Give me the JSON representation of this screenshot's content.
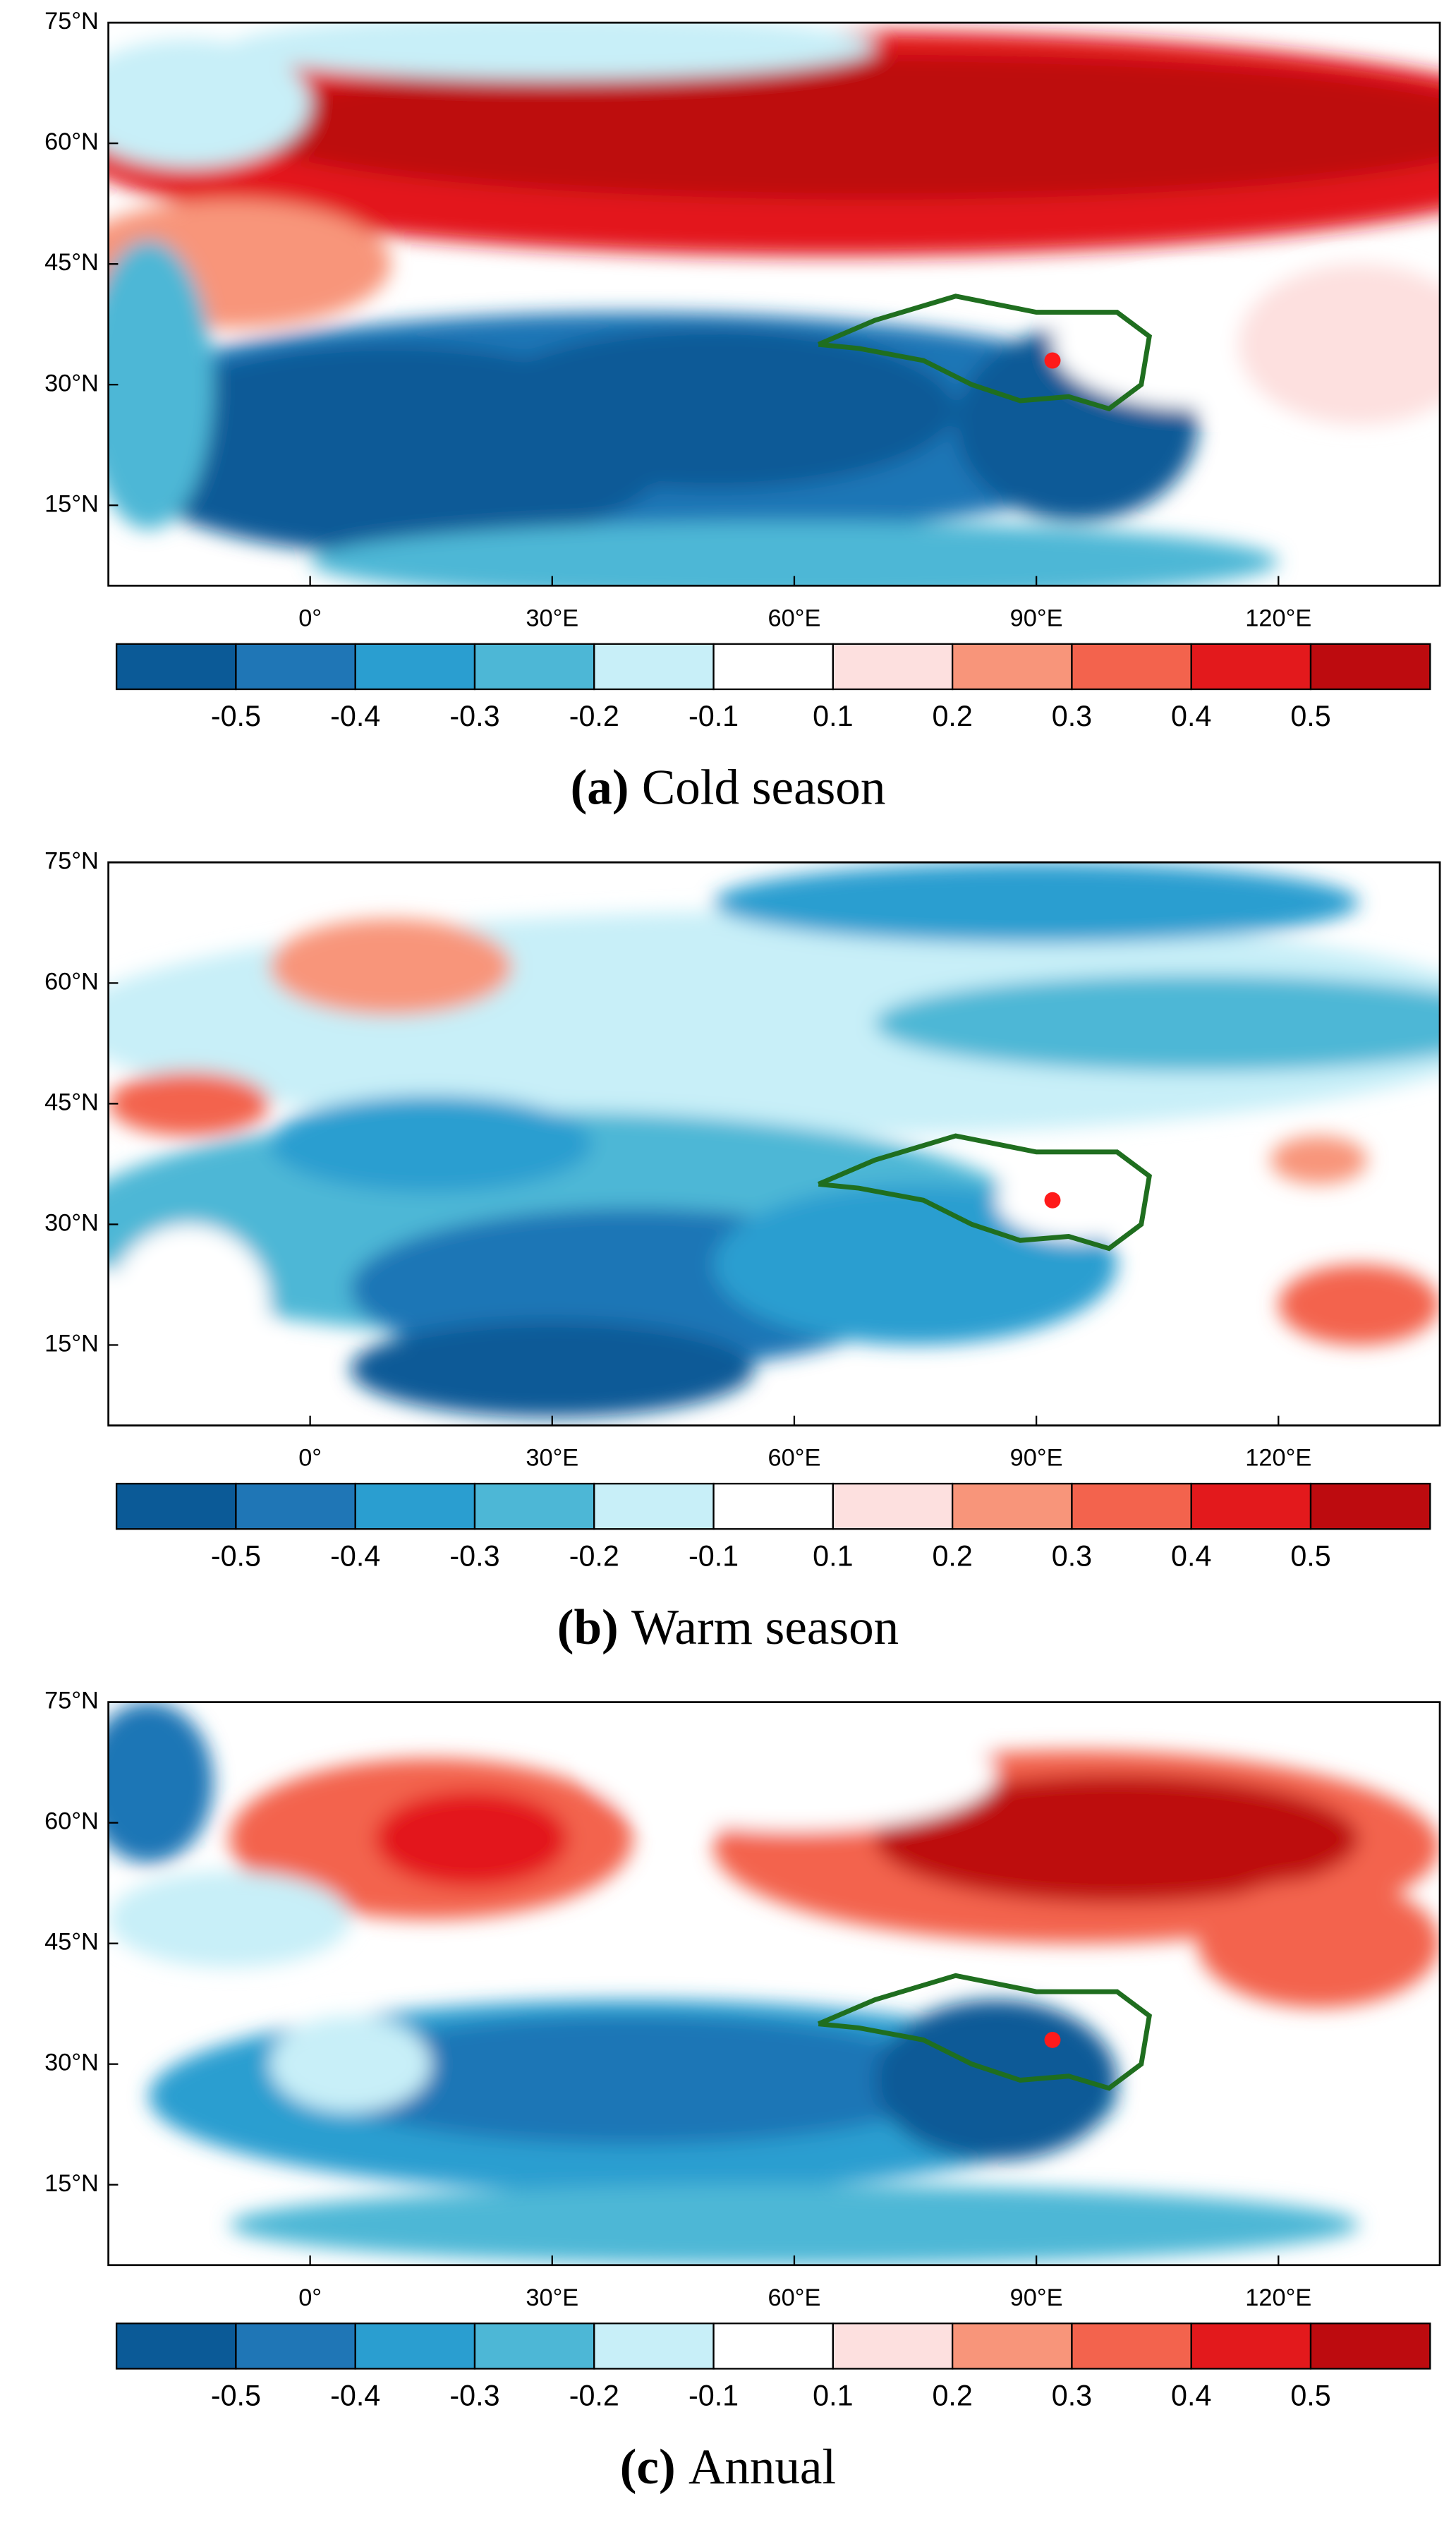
{
  "panels": [
    {
      "label": "(a)",
      "caption": "Cold season"
    },
    {
      "label": "(b)",
      "caption": "Warm season"
    },
    {
      "label": "(c)",
      "caption": "Annual"
    }
  ],
  "lat_ticks": [
    {
      "value": 75,
      "label": "75°N"
    },
    {
      "value": 60,
      "label": "60°N"
    },
    {
      "value": 45,
      "label": "45°N"
    },
    {
      "value": 30,
      "label": "30°N"
    },
    {
      "value": 15,
      "label": "15°N"
    }
  ],
  "lon_ticks": [
    {
      "value": 0,
      "label": "0°"
    },
    {
      "value": 30,
      "label": "30°E"
    },
    {
      "value": 60,
      "label": "60°E"
    },
    {
      "value": 90,
      "label": "90°E"
    },
    {
      "value": 120,
      "label": "120°E"
    }
  ],
  "xlim": [
    -25,
    140
  ],
  "ylim": [
    5,
    75
  ],
  "colorbar": {
    "levels": [
      -0.5,
      -0.4,
      -0.3,
      -0.2,
      -0.1,
      0.1,
      0.2,
      0.3,
      0.4,
      0.5
    ],
    "colors": [
      "#0b5a97",
      "#1f76b6",
      "#2a9ed0",
      "#4db7d6",
      "#c8eff8",
      "#ffffff",
      "#fde0df",
      "#f8957a",
      "#f3634d",
      "#e3191c",
      "#bd0b0f"
    ]
  }
}
